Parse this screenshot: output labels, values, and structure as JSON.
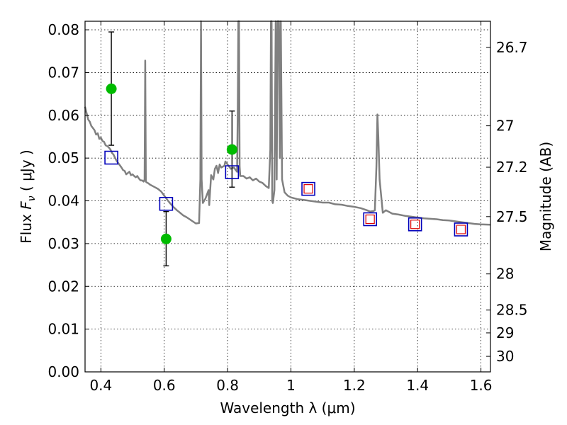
{
  "chart_data": {
    "type": "scatter",
    "xlabel": "Wavelength  λ (μm)",
    "ylabel": "Flux  Fν  ( μJy )",
    "ylabel_parts": {
      "prefix": "Flux  ",
      "symbol": "F",
      "subscript": "ν",
      "suffix": "  ( μJy )"
    },
    "y2label": "Magnitude (AB)",
    "xlim": [
      0.35,
      1.63
    ],
    "ylim": [
      0.0,
      0.082
    ],
    "x_ticks": [
      0.4,
      0.6,
      0.8,
      1.0,
      1.2,
      1.4,
      1.6
    ],
    "x_tick_labels": [
      "0.4",
      "0.6",
      "0.8",
      "1",
      "1.2",
      "1.4",
      "1.6"
    ],
    "y_ticks": [
      0.0,
      0.01,
      0.02,
      0.03,
      0.04,
      0.05,
      0.06,
      0.07,
      0.08
    ],
    "y_tick_labels": [
      "0.00",
      "0.01",
      "0.02",
      "0.03",
      "0.04",
      "0.05",
      "0.06",
      "0.07",
      "0.08"
    ],
    "mag_ticks": [
      26.7,
      27,
      27.2,
      27.5,
      28,
      28.5,
      29,
      30
    ],
    "mag_tick_labels": [
      "26.7",
      "27",
      "27.2",
      "27.5",
      "28",
      "28.5",
      "29",
      "30"
    ],
    "grid": true,
    "colors": {
      "sed": "#808080",
      "observed": "#00bb00",
      "model_box": "#0000bb",
      "model_inner": "#dd0000",
      "errorbar": "#000000"
    },
    "series": [
      {
        "kind": "line",
        "points": [
          [
            0.35,
            0.062
          ],
          [
            0.355,
            0.0605
          ],
          [
            0.36,
            0.059
          ],
          [
            0.365,
            0.0585
          ],
          [
            0.37,
            0.0575
          ],
          [
            0.375,
            0.057
          ],
          [
            0.38,
            0.0565
          ],
          [
            0.385,
            0.0555
          ],
          [
            0.39,
            0.0558
          ],
          [
            0.395,
            0.0545
          ],
          [
            0.4,
            0.0548
          ],
          [
            0.405,
            0.054
          ],
          [
            0.41,
            0.0538
          ],
          [
            0.415,
            0.053
          ],
          [
            0.42,
            0.0528
          ],
          [
            0.425,
            0.0525
          ],
          [
            0.43,
            0.052
          ],
          [
            0.435,
            0.0512
          ],
          [
            0.44,
            0.0508
          ],
          [
            0.445,
            0.05
          ],
          [
            0.45,
            0.0493
          ],
          [
            0.455,
            0.0488
          ],
          [
            0.46,
            0.0483
          ],
          [
            0.465,
            0.0478
          ],
          [
            0.47,
            0.0472
          ],
          [
            0.475,
            0.047
          ],
          [
            0.48,
            0.0462
          ],
          [
            0.485,
            0.0465
          ],
          [
            0.49,
            0.0468
          ],
          [
            0.495,
            0.046
          ],
          [
            0.5,
            0.0462
          ],
          [
            0.505,
            0.0458
          ],
          [
            0.51,
            0.0455
          ],
          [
            0.515,
            0.0458
          ],
          [
            0.52,
            0.0452
          ],
          [
            0.525,
            0.0448
          ],
          [
            0.53,
            0.0448
          ],
          [
            0.535,
            0.0445
          ],
          [
            0.538,
            0.045
          ],
          [
            0.54,
            0.0728
          ],
          [
            0.542,
            0.0445
          ],
          [
            0.545,
            0.0443
          ],
          [
            0.55,
            0.0441
          ],
          [
            0.555,
            0.0438
          ],
          [
            0.56,
            0.0436
          ],
          [
            0.57,
            0.0432
          ],
          [
            0.58,
            0.0428
          ],
          [
            0.59,
            0.0422
          ],
          [
            0.6,
            0.0412
          ],
          [
            0.61,
            0.0402
          ],
          [
            0.62,
            0.0393
          ],
          [
            0.63,
            0.0385
          ],
          [
            0.64,
            0.0378
          ],
          [
            0.65,
            0.0372
          ],
          [
            0.66,
            0.0366
          ],
          [
            0.67,
            0.0362
          ],
          [
            0.68,
            0.0357
          ],
          [
            0.69,
            0.0352
          ],
          [
            0.7,
            0.0347
          ],
          [
            0.71,
            0.0348
          ],
          [
            0.714,
            0.045
          ],
          [
            0.716,
            0.082
          ],
          [
            0.718,
            0.045
          ],
          [
            0.722,
            0.0395
          ],
          [
            0.73,
            0.0405
          ],
          [
            0.74,
            0.0425
          ],
          [
            0.742,
            0.039
          ],
          [
            0.748,
            0.046
          ],
          [
            0.755,
            0.045
          ],
          [
            0.76,
            0.0475
          ],
          [
            0.765,
            0.0482
          ],
          [
            0.77,
            0.0465
          ],
          [
            0.775,
            0.0485
          ],
          [
            0.78,
            0.0478
          ],
          [
            0.79,
            0.0482
          ],
          [
            0.793,
            0.0492
          ],
          [
            0.8,
            0.0485
          ],
          [
            0.81,
            0.0475
          ],
          [
            0.82,
            0.0478
          ],
          [
            0.83,
            0.0468
          ],
          [
            0.832,
            0.06
          ],
          [
            0.834,
            0.082
          ],
          [
            0.836,
            0.082
          ],
          [
            0.838,
            0.048
          ],
          [
            0.84,
            0.0458
          ],
          [
            0.85,
            0.0458
          ],
          [
            0.86,
            0.0452
          ],
          [
            0.87,
            0.0455
          ],
          [
            0.88,
            0.0448
          ],
          [
            0.89,
            0.0452
          ],
          [
            0.9,
            0.0445
          ],
          [
            0.91,
            0.0442
          ],
          [
            0.92,
            0.0435
          ],
          [
            0.93,
            0.043
          ],
          [
            0.935,
            0.052
          ],
          [
            0.937,
            0.082
          ],
          [
            0.939,
            0.082
          ],
          [
            0.941,
            0.04
          ],
          [
            0.943,
            0.0395
          ],
          [
            0.948,
            0.0425
          ],
          [
            0.952,
            0.082
          ],
          [
            0.955,
            0.045
          ],
          [
            0.958,
            0.082
          ],
          [
            0.962,
            0.082
          ],
          [
            0.965,
            0.05
          ],
          [
            0.968,
            0.082
          ],
          [
            0.972,
            0.045
          ],
          [
            0.98,
            0.042
          ],
          [
            0.99,
            0.0412
          ],
          [
            1.0,
            0.0408
          ],
          [
            1.02,
            0.0404
          ],
          [
            1.04,
            0.0402
          ],
          [
            1.06,
            0.04
          ],
          [
            1.08,
            0.0398
          ],
          [
            1.1,
            0.0396
          ],
          [
            1.12,
            0.0396
          ],
          [
            1.14,
            0.0392
          ],
          [
            1.16,
            0.0391
          ],
          [
            1.18,
            0.0388
          ],
          [
            1.2,
            0.0386
          ],
          [
            1.22,
            0.0383
          ],
          [
            1.24,
            0.0378
          ],
          [
            1.25,
            0.0375
          ],
          [
            1.26,
            0.0376
          ],
          [
            1.265,
            0.0378
          ],
          [
            1.27,
            0.048
          ],
          [
            1.273,
            0.0602
          ],
          [
            1.276,
            0.055
          ],
          [
            1.28,
            0.045
          ],
          [
            1.29,
            0.0372
          ],
          [
            1.3,
            0.0378
          ],
          [
            1.32,
            0.037
          ],
          [
            1.34,
            0.0368
          ],
          [
            1.36,
            0.0365
          ],
          [
            1.38,
            0.0363
          ],
          [
            1.4,
            0.0361
          ],
          [
            1.42,
            0.0359
          ],
          [
            1.44,
            0.0358
          ],
          [
            1.46,
            0.0357
          ],
          [
            1.48,
            0.0355
          ],
          [
            1.5,
            0.0354
          ],
          [
            1.52,
            0.0352
          ],
          [
            1.54,
            0.035
          ],
          [
            1.56,
            0.0348
          ],
          [
            1.58,
            0.0346
          ],
          [
            1.6,
            0.0345
          ],
          [
            1.63,
            0.0344
          ]
        ]
      },
      {
        "kind": "observed",
        "points": [
          {
            "x": 0.433,
            "y": 0.0662,
            "err_low": 0.053,
            "err_high": 0.0795
          },
          {
            "x": 0.606,
            "y": 0.0311,
            "err_low": 0.0248,
            "err_high": 0.0375
          },
          {
            "x": 0.814,
            "y": 0.052,
            "err_low": 0.0432,
            "err_high": 0.061
          }
        ]
      },
      {
        "kind": "model",
        "points": [
          {
            "x": 0.433,
            "y": 0.0501
          },
          {
            "x": 0.606,
            "y": 0.0393
          },
          {
            "x": 0.814,
            "y": 0.0467
          },
          {
            "x": 1.055,
            "y": 0.0428,
            "inner": true
          },
          {
            "x": 1.25,
            "y": 0.0357,
            "inner": true
          },
          {
            "x": 1.392,
            "y": 0.0345,
            "inner": true
          },
          {
            "x": 1.537,
            "y": 0.0333,
            "inner": true
          }
        ]
      }
    ]
  }
}
